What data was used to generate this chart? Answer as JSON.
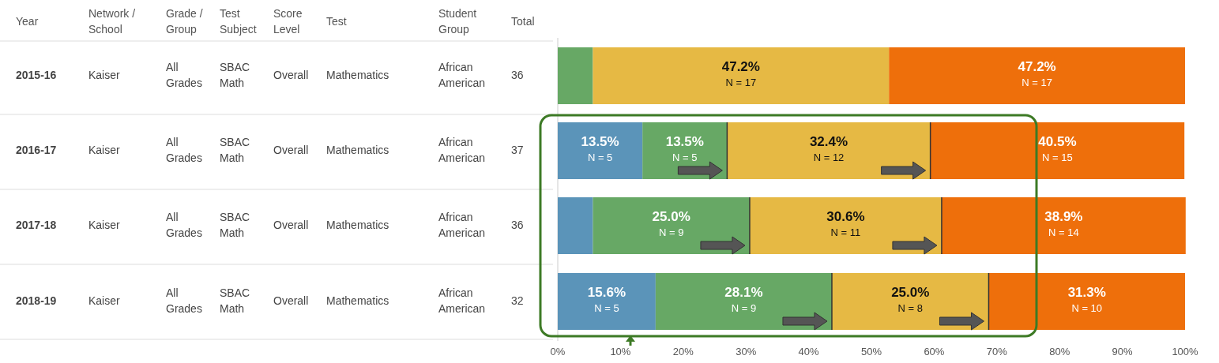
{
  "chart_data": [
    {
      "type": "other",
      "categories": [
        "Year",
        "Network /\nSchool",
        "Grade /\nGroup",
        "Test\nSubject",
        "Score\nLevel",
        "Test",
        "Student\nGroup",
        "Total"
      ],
      "annotations": [
        "2015-16",
        "Kaiser",
        "All\nGrades",
        "SBAC\nMath",
        "Overall",
        "Mathematics",
        "African\nAmerican",
        "36",
        "2016-17",
        "Kaiser",
        "All\nGrades",
        "SBAC\nMath",
        "Overall",
        "Mathematics",
        "African\nAmerican",
        "37",
        "2017-18",
        "Kaiser",
        "All\nGrades",
        "SBAC\nMath",
        "Overall",
        "Mathematics",
        "African\nAmerican",
        "36",
        "2018-19",
        "Kaiser",
        "All\nGrades",
        "SBAC\nMath",
        "Overall",
        "Mathematics",
        "African\nAmerican",
        "32"
      ]
    },
    {
      "type": "bar",
      "orientation": "horizontal",
      "stacked": true,
      "categories": [
        null,
        null,
        null,
        null
      ],
      "xlim": [
        0,
        100
      ],
      "xticks": [
        {
          "value": 0,
          "label": "0%"
        },
        {
          "value": 10,
          "label": "10%"
        },
        {
          "value": 20,
          "label": "20%"
        },
        {
          "value": 30,
          "label": "30%"
        },
        {
          "value": 40,
          "label": "40%"
        },
        {
          "value": 50,
          "label": "50%"
        },
        {
          "value": 60,
          "label": "60%"
        },
        {
          "value": 70,
          "label": "70%"
        },
        {
          "value": 80,
          "label": "80%"
        },
        {
          "value": 90,
          "label": "90%"
        },
        {
          "value": 100,
          "label": "100%"
        }
      ],
      "series": [
        {
          "color": "#5b94b9",
          "values": [
            0,
            13.5,
            5.6,
            15.6
          ],
          "value_labels": [
            null,
            "13.5%\nN = 5",
            null,
            "15.6%\nN = 5"
          ]
        },
        {
          "color": "#67a865",
          "values": [
            5.6,
            13.5,
            25.0,
            28.1
          ],
          "value_labels": [
            null,
            "13.5%\nN = 5",
            "25.0%\nN = 9",
            "28.1%\nN = 9"
          ]
        },
        {
          "color": "#e6b944",
          "values": [
            47.2,
            32.4,
            30.6,
            25.0
          ],
          "value_labels": [
            "47.2%\nN = 17",
            "32.4%\nN = 12",
            "30.6%\nN = 11",
            "25.0%\nN = 8"
          ]
        },
        {
          "color": "#ee6f0b",
          "values": [
            47.2,
            40.5,
            38.9,
            31.3
          ],
          "value_labels": [
            "47.2%\nN = 17",
            "40.5%\nN = 15",
            "38.9%\nN = 14",
            "31.3%\nN = 10"
          ]
        }
      ]
    }
  ]
}
